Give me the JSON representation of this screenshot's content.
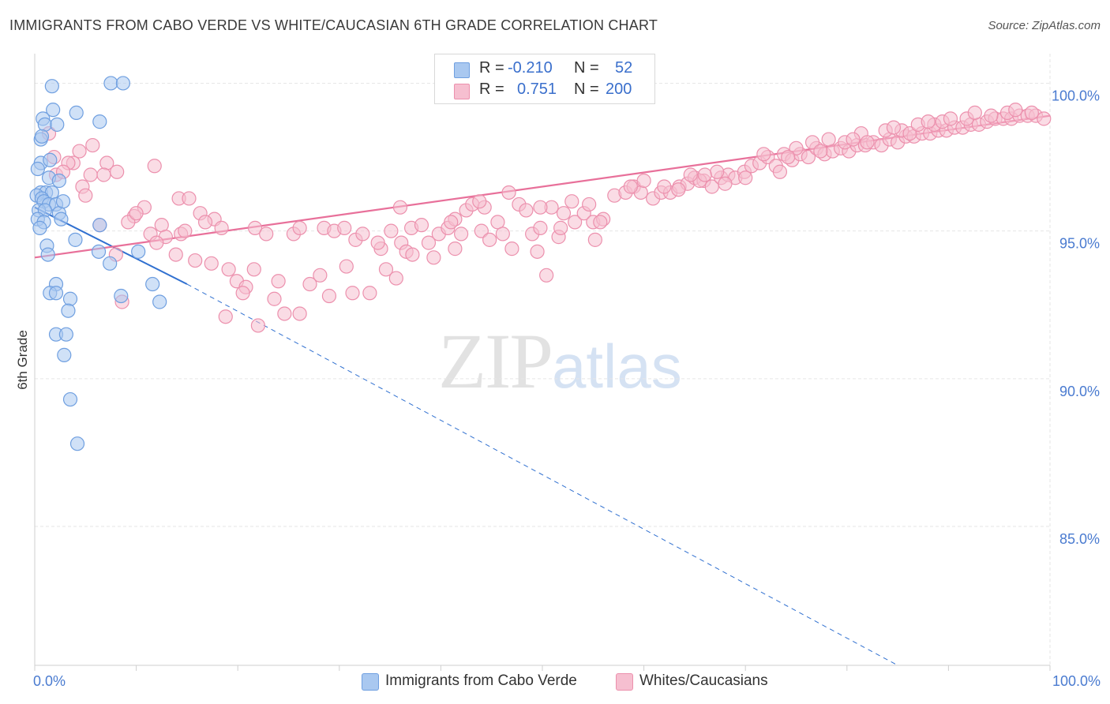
{
  "header": {
    "title": "IMMIGRANTS FROM CABO VERDE VS WHITE/CAUCASIAN 6TH GRADE CORRELATION CHART",
    "source": "Source: ZipAtlas.com"
  },
  "watermark": {
    "zip": "ZIP",
    "atlas": "atlas"
  },
  "legend": {
    "rows": [
      {
        "r_label": "R =",
        "r_value": "-0.210",
        "n_label": "N =",
        "n_value": "52"
      },
      {
        "r_label": "R =",
        "r_value": "0.751",
        "n_label": "N =",
        "n_value": "200"
      }
    ]
  },
  "bottom_legend": {
    "series_a": "Immigrants from Cabo Verde",
    "series_b": "Whites/Caucasians"
  },
  "colors": {
    "blue_fill": "#a9c8f0",
    "blue_stroke": "#6f9fe0",
    "blue_line": "#3070d0",
    "pink_fill": "#f6bfd0",
    "pink_stroke": "#ec90ad",
    "pink_line": "#e8709a",
    "axis_text": "#4a7bd0",
    "grid": "#e6e6e6"
  },
  "chart_data": {
    "type": "scatter",
    "title": "IMMIGRANTS FROM CABO VERDE VS WHITE/CAUCASIAN 6TH GRADE CORRELATION CHART",
    "xlabel": "",
    "ylabel": "6th Grade",
    "xlim": [
      0,
      100
    ],
    "ylim": [
      80.3,
      101.0
    ],
    "x_ticks": [
      0,
      10,
      20,
      30,
      40,
      50,
      60,
      70,
      80,
      90,
      100
    ],
    "x_tick_labels": {
      "0": "0.0%",
      "100": "100.0%"
    },
    "y_ticks": [
      100,
      95,
      90,
      85
    ],
    "y_tick_labels": [
      "100.0%",
      "95.0%",
      "90.0%",
      "85.0%"
    ],
    "legend_position": "top-center",
    "series": [
      {
        "name": "Immigrants from Cabo Verde",
        "color": "#a9c8f0",
        "r": -0.21,
        "n": 52,
        "trend": {
          "x0": 0,
          "y0": 95.8,
          "x1": 15.0,
          "y1": 93.2,
          "dashed_to_x": 85,
          "dashed_to_y": 80.3
        },
        "points": [
          [
            1.7,
            99.9
          ],
          [
            7.5,
            100.0
          ],
          [
            8.7,
            100.0
          ],
          [
            1.8,
            99.1
          ],
          [
            4.1,
            99.0
          ],
          [
            0.8,
            98.8
          ],
          [
            1.0,
            98.6
          ],
          [
            2.2,
            98.6
          ],
          [
            6.4,
            98.7
          ],
          [
            0.6,
            98.1
          ],
          [
            0.7,
            98.2
          ],
          [
            0.6,
            97.3
          ],
          [
            1.5,
            97.4
          ],
          [
            0.3,
            97.1
          ],
          [
            1.4,
            96.8
          ],
          [
            2.4,
            96.7
          ],
          [
            0.6,
            96.3
          ],
          [
            1.1,
            96.3
          ],
          [
            1.7,
            96.3
          ],
          [
            0.2,
            96.2
          ],
          [
            0.7,
            96.1
          ],
          [
            0.9,
            96.0
          ],
          [
            1.4,
            95.9
          ],
          [
            2.1,
            95.9
          ],
          [
            0.4,
            95.7
          ],
          [
            1.0,
            95.7
          ],
          [
            2.4,
            95.6
          ],
          [
            2.6,
            95.4
          ],
          [
            0.3,
            95.4
          ],
          [
            0.9,
            95.3
          ],
          [
            6.4,
            95.2
          ],
          [
            4.0,
            94.7
          ],
          [
            1.2,
            94.5
          ],
          [
            1.3,
            94.2
          ],
          [
            6.3,
            94.3
          ],
          [
            10.2,
            94.3
          ],
          [
            7.4,
            93.9
          ],
          [
            2.1,
            93.2
          ],
          [
            1.5,
            92.9
          ],
          [
            2.1,
            92.9
          ],
          [
            11.6,
            93.2
          ],
          [
            8.5,
            92.8
          ],
          [
            3.5,
            92.7
          ],
          [
            12.3,
            92.6
          ],
          [
            3.3,
            92.3
          ],
          [
            2.1,
            91.5
          ],
          [
            3.1,
            91.5
          ],
          [
            2.9,
            90.8
          ],
          [
            3.5,
            89.3
          ],
          [
            4.2,
            87.8
          ],
          [
            0.5,
            95.1
          ],
          [
            2.8,
            96.0
          ]
        ]
      },
      {
        "name": "Whites/Caucasians",
        "color": "#f6bfd0",
        "r": 0.751,
        "n": 200,
        "trend": {
          "x0": 0,
          "y0": 94.1,
          "x1": 100,
          "y1": 98.9
        },
        "points": [
          [
            1.4,
            98.3
          ],
          [
            4.4,
            97.7
          ],
          [
            5.7,
            97.9
          ],
          [
            1.9,
            97.5
          ],
          [
            3.8,
            97.3
          ],
          [
            7.1,
            97.3
          ],
          [
            3.3,
            97.3
          ],
          [
            8.1,
            97.0
          ],
          [
            11.8,
            97.2
          ],
          [
            5.5,
            96.9
          ],
          [
            6.8,
            96.9
          ],
          [
            4.7,
            96.5
          ],
          [
            2.1,
            96.9
          ],
          [
            14.2,
            96.1
          ],
          [
            15.2,
            96.1
          ],
          [
            10.8,
            95.8
          ],
          [
            9.8,
            95.5
          ],
          [
            16.3,
            95.6
          ],
          [
            17.7,
            95.4
          ],
          [
            9.2,
            95.3
          ],
          [
            6.4,
            95.2
          ],
          [
            12.5,
            95.2
          ],
          [
            18.4,
            95.1
          ],
          [
            21.7,
            95.1
          ],
          [
            11.4,
            94.9
          ],
          [
            12.9,
            94.8
          ],
          [
            14.4,
            94.9
          ],
          [
            22.8,
            94.9
          ],
          [
            25.5,
            94.9
          ],
          [
            26.1,
            95.1
          ],
          [
            28.5,
            95.1
          ],
          [
            29.5,
            95.0
          ],
          [
            30.5,
            95.1
          ],
          [
            31.6,
            94.7
          ],
          [
            32.3,
            94.9
          ],
          [
            34.1,
            94.4
          ],
          [
            33.8,
            94.6
          ],
          [
            36.1,
            94.6
          ],
          [
            36.6,
            94.3
          ],
          [
            35.1,
            95.0
          ],
          [
            37.1,
            95.1
          ],
          [
            38.1,
            95.2
          ],
          [
            39.8,
            94.9
          ],
          [
            40.7,
            95.1
          ],
          [
            41.4,
            95.4
          ],
          [
            42.5,
            95.7
          ],
          [
            43.1,
            95.9
          ],
          [
            44.3,
            95.8
          ],
          [
            45.6,
            95.3
          ],
          [
            44.0,
            95.0
          ],
          [
            46.7,
            96.3
          ],
          [
            47.7,
            95.9
          ],
          [
            48.4,
            95.7
          ],
          [
            49.0,
            94.9
          ],
          [
            49.8,
            95.1
          ],
          [
            50.9,
            95.8
          ],
          [
            52.1,
            95.6
          ],
          [
            53.2,
            95.3
          ],
          [
            54.1,
            95.6
          ],
          [
            55.0,
            95.3
          ],
          [
            56.0,
            95.4
          ],
          [
            57.1,
            96.2
          ],
          [
            58.2,
            96.3
          ],
          [
            59.0,
            96.5
          ],
          [
            59.7,
            96.3
          ],
          [
            60.9,
            96.1
          ],
          [
            61.7,
            96.3
          ],
          [
            62.6,
            96.3
          ],
          [
            63.5,
            96.5
          ],
          [
            64.3,
            96.6
          ],
          [
            65.0,
            96.8
          ],
          [
            65.9,
            96.7
          ],
          [
            66.7,
            96.5
          ],
          [
            67.6,
            96.8
          ],
          [
            68.3,
            96.9
          ],
          [
            69.0,
            96.8
          ],
          [
            69.9,
            97.0
          ],
          [
            70.6,
            97.2
          ],
          [
            71.4,
            97.3
          ],
          [
            72.2,
            97.5
          ],
          [
            73.0,
            97.2
          ],
          [
            73.8,
            97.6
          ],
          [
            74.6,
            97.4
          ],
          [
            75.4,
            97.6
          ],
          [
            76.2,
            97.5
          ],
          [
            77.0,
            97.8
          ],
          [
            77.8,
            97.6
          ],
          [
            78.6,
            97.7
          ],
          [
            79.4,
            97.8
          ],
          [
            80.2,
            97.7
          ],
          [
            81.0,
            97.9
          ],
          [
            81.8,
            97.9
          ],
          [
            82.6,
            98.0
          ],
          [
            83.4,
            97.9
          ],
          [
            84.2,
            98.1
          ],
          [
            85.0,
            98.0
          ],
          [
            85.8,
            98.2
          ],
          [
            86.6,
            98.2
          ],
          [
            87.4,
            98.3
          ],
          [
            88.2,
            98.3
          ],
          [
            89.0,
            98.4
          ],
          [
            89.8,
            98.4
          ],
          [
            90.6,
            98.5
          ],
          [
            91.4,
            98.5
          ],
          [
            92.2,
            98.6
          ],
          [
            93.0,
            98.6
          ],
          [
            93.8,
            98.7
          ],
          [
            94.6,
            98.8
          ],
          [
            95.4,
            98.8
          ],
          [
            96.2,
            98.8
          ],
          [
            97.0,
            98.9
          ],
          [
            97.8,
            98.9
          ],
          [
            98.6,
            98.9
          ],
          [
            99.4,
            98.8
          ],
          [
            15.8,
            94.0
          ],
          [
            17.4,
            93.9
          ],
          [
            19.1,
            93.7
          ],
          [
            19.9,
            93.3
          ],
          [
            20.8,
            93.1
          ],
          [
            21.6,
            93.7
          ],
          [
            23.6,
            92.7
          ],
          [
            24.6,
            92.2
          ],
          [
            26.1,
            92.2
          ],
          [
            27.1,
            93.2
          ],
          [
            28.1,
            93.5
          ],
          [
            30.7,
            93.8
          ],
          [
            31.3,
            92.9
          ],
          [
            34.6,
            93.7
          ],
          [
            35.6,
            93.4
          ],
          [
            18.8,
            92.1
          ],
          [
            20.5,
            92.9
          ],
          [
            22.0,
            91.8
          ],
          [
            37.2,
            94.2
          ],
          [
            38.8,
            94.6
          ],
          [
            41.4,
            94.4
          ],
          [
            41.0,
            95.3
          ],
          [
            43.8,
            96.0
          ],
          [
            46.1,
            94.9
          ],
          [
            49.5,
            94.3
          ],
          [
            49.8,
            95.8
          ],
          [
            51.6,
            94.8
          ],
          [
            52.9,
            96.0
          ],
          [
            54.6,
            95.9
          ],
          [
            55.7,
            95.3
          ],
          [
            58.7,
            96.5
          ],
          [
            62.0,
            96.5
          ],
          [
            63.4,
            96.4
          ],
          [
            65.5,
            96.7
          ],
          [
            67.2,
            97.0
          ],
          [
            68.0,
            96.6
          ],
          [
            70.0,
            96.8
          ],
          [
            71.8,
            97.6
          ],
          [
            73.4,
            97.0
          ],
          [
            75.0,
            97.8
          ],
          [
            76.6,
            98.0
          ],
          [
            78.2,
            98.1
          ],
          [
            79.8,
            98.0
          ],
          [
            81.4,
            98.3
          ],
          [
            82.0,
            98.0
          ],
          [
            83.8,
            98.4
          ],
          [
            85.4,
            98.4
          ],
          [
            86.2,
            98.3
          ],
          [
            87.0,
            98.6
          ],
          [
            88.6,
            98.6
          ],
          [
            89.4,
            98.7
          ],
          [
            90.2,
            98.8
          ],
          [
            91.8,
            98.8
          ],
          [
            92.6,
            99.0
          ],
          [
            94.2,
            98.9
          ],
          [
            95.8,
            99.0
          ],
          [
            96.6,
            99.1
          ],
          [
            98.2,
            99.0
          ],
          [
            13.9,
            94.2
          ],
          [
            24.0,
            93.3
          ],
          [
            29.0,
            92.8
          ],
          [
            33.0,
            92.9
          ],
          [
            36.0,
            95.8
          ],
          [
            39.3,
            94.1
          ],
          [
            42.0,
            94.9
          ],
          [
            47.0,
            94.4
          ],
          [
            8.6,
            92.6
          ],
          [
            8.0,
            94.2
          ],
          [
            10.0,
            95.6
          ],
          [
            12.0,
            94.6
          ],
          [
            14.8,
            95.0
          ],
          [
            16.8,
            95.3
          ],
          [
            2.8,
            97.0
          ],
          [
            5.0,
            96.2
          ],
          [
            44.8,
            94.7
          ],
          [
            50.4,
            93.5
          ],
          [
            51.8,
            95.1
          ],
          [
            55.2,
            94.7
          ],
          [
            60.0,
            96.7
          ],
          [
            64.6,
            96.9
          ],
          [
            66.0,
            96.9
          ],
          [
            74.2,
            97.5
          ],
          [
            77.4,
            97.7
          ],
          [
            80.6,
            98.1
          ],
          [
            84.6,
            98.5
          ],
          [
            88.0,
            98.7
          ]
        ]
      }
    ]
  }
}
